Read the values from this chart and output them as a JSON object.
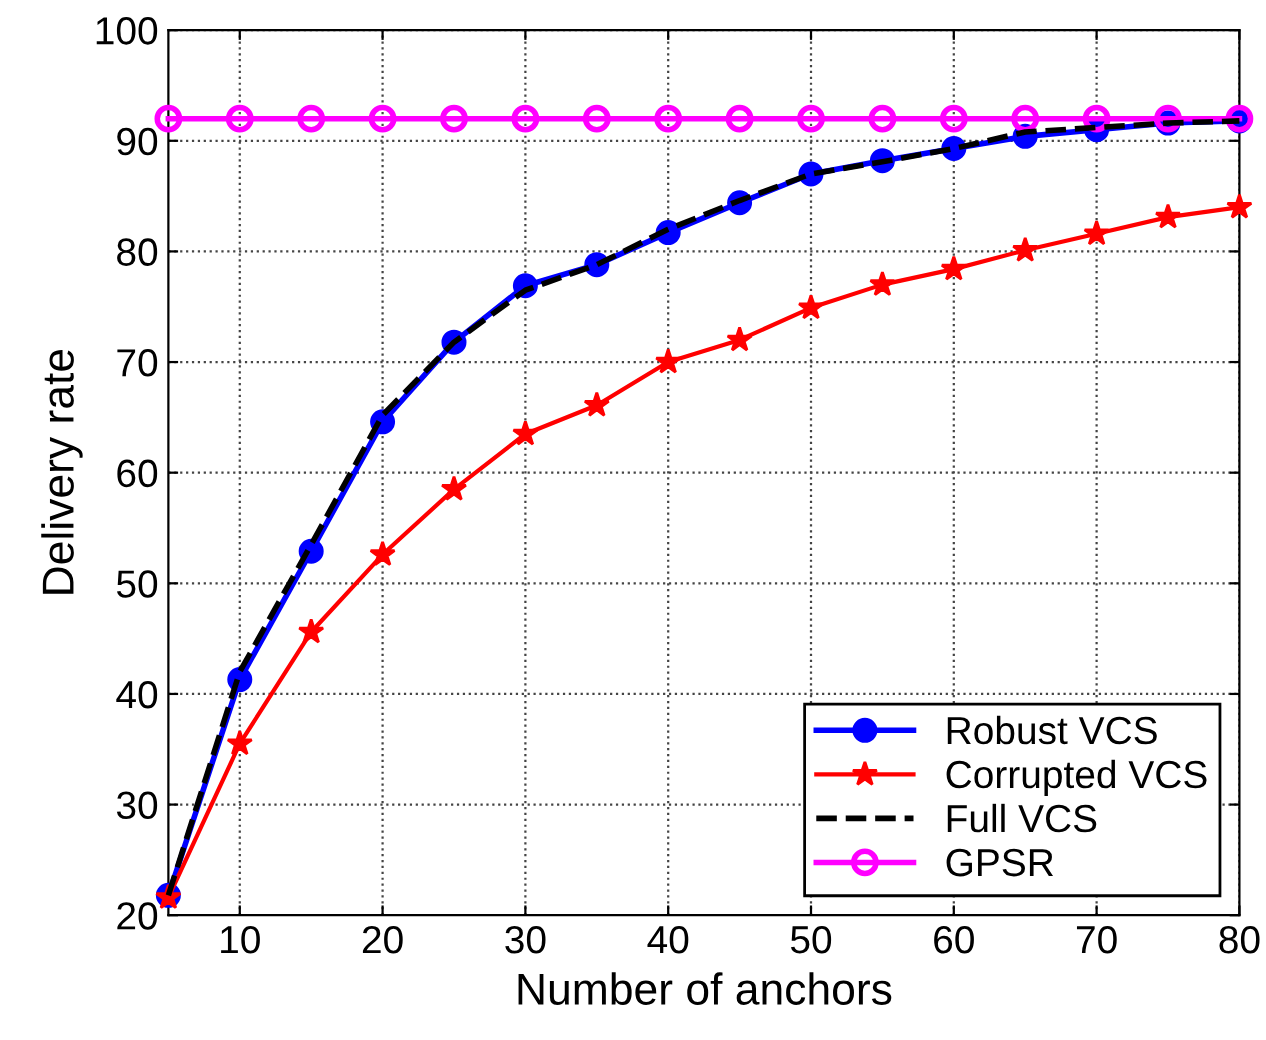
{
  "chart_data": {
    "type": "line",
    "xlabel": "Number of anchors",
    "ylabel": "Delivery rate",
    "x": [
      5,
      10,
      15,
      20,
      25,
      30,
      35,
      40,
      45,
      50,
      55,
      60,
      65,
      70,
      75,
      80
    ],
    "series": [
      {
        "name": "Robust VCS",
        "color": "#0000ff",
        "marker": "circle",
        "line_style": "solid",
        "values": [
          21.8,
          41.3,
          52.9,
          64.6,
          71.8,
          76.9,
          78.8,
          81.7,
          84.4,
          87.0,
          88.2,
          89.3,
          90.4,
          91.0,
          91.6,
          91.8
        ]
      },
      {
        "name": "Corrupted VCS",
        "color": "#ff0000",
        "marker": "star",
        "line_style": "solid",
        "values": [
          21.6,
          35.5,
          45.6,
          52.6,
          58.5,
          63.5,
          66.1,
          70.0,
          72.0,
          74.9,
          77.0,
          78.4,
          80.1,
          81.6,
          83.1,
          84.0
        ]
      },
      {
        "name": "Full VCS",
        "color": "#000000",
        "marker": "none",
        "line_style": "dashed",
        "values": [
          21.8,
          42.0,
          53.5,
          65.2,
          71.8,
          76.5,
          78.8,
          82.0,
          84.6,
          87.0,
          88.1,
          89.3,
          90.8,
          91.2,
          91.6,
          91.8
        ]
      },
      {
        "name": "GPSR",
        "color": "#ff00ff",
        "marker": "circle",
        "line_style": "solid",
        "values": [
          92,
          92,
          92,
          92,
          92,
          92,
          92,
          92,
          92,
          92,
          92,
          92,
          92,
          92,
          92,
          92
        ]
      }
    ],
    "xlim": [
      5,
      80
    ],
    "ylim": [
      20,
      100
    ],
    "xticks": [
      10,
      20,
      30,
      40,
      50,
      60,
      70,
      80
    ],
    "yticks": [
      20,
      30,
      40,
      50,
      60,
      70,
      80,
      90,
      100
    ],
    "grid": true,
    "legend": "bottom right"
  }
}
